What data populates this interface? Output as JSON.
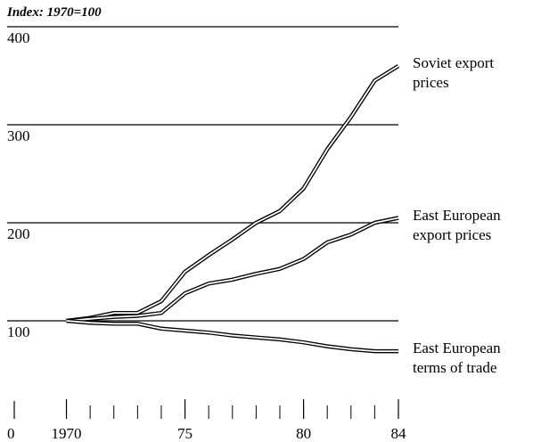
{
  "chart_data": {
    "type": "line",
    "title": "Index: 1970=100",
    "x": [
      1970,
      1971,
      1972,
      1973,
      1974,
      1975,
      1976,
      1977,
      1978,
      1979,
      1980,
      1981,
      1982,
      1983,
      1984
    ],
    "series": [
      {
        "name": "Soviet export prices",
        "color": "#000000",
        "values": [
          100,
          103,
          108,
          108,
          120,
          150,
          167,
          183,
          200,
          212,
          235,
          275,
          308,
          345,
          360
        ]
      },
      {
        "name": "East European export prices",
        "color": "#000000",
        "values": [
          100,
          102,
          104,
          105,
          108,
          128,
          138,
          142,
          148,
          153,
          163,
          180,
          188,
          200,
          205
        ]
      },
      {
        "name": "East European terms of trade",
        "color": "#000000",
        "values": [
          100,
          98,
          97,
          97,
          92,
          90,
          88,
          85,
          83,
          81,
          78,
          74,
          71,
          69,
          69
        ]
      }
    ],
    "xlim": [
      1967.8,
      1984
    ],
    "xticks": [
      {
        "value": 1970,
        "label": "1970"
      },
      {
        "value": 1975,
        "label": "75"
      },
      {
        "value": 1980,
        "label": "80"
      },
      {
        "value": 1984,
        "label": "84"
      }
    ],
    "ylim": [
      0,
      400
    ],
    "yticks": [
      0,
      100,
      200,
      300,
      400
    ],
    "grid": true
  }
}
